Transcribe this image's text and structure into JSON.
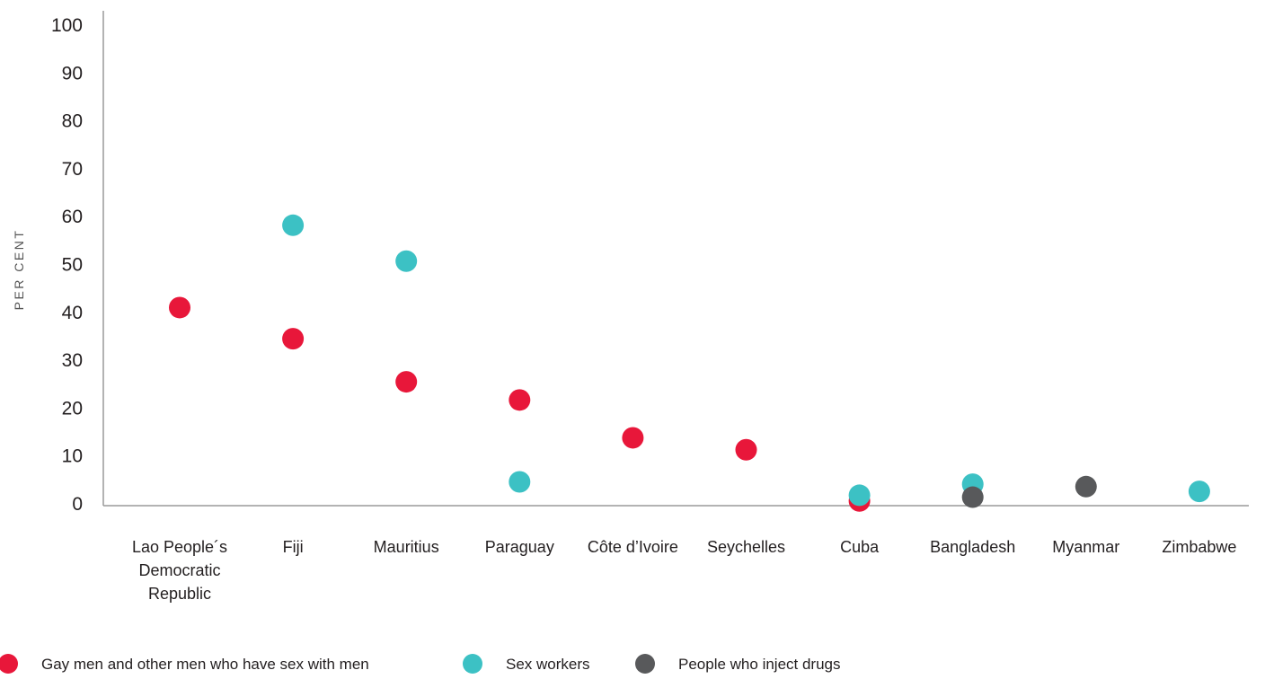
{
  "chart_data": {
    "type": "scatter",
    "title": "",
    "xlabel": "",
    "ylabel": "PER CENT",
    "ylim": [
      0,
      100
    ],
    "yticks": [
      0,
      10,
      20,
      30,
      40,
      50,
      60,
      70,
      80,
      90,
      100
    ],
    "grid": false,
    "legend_position": "bottom-left",
    "categories": [
      [
        "Lao People´s",
        "Democratic",
        "Republic"
      ],
      [
        "Fiji"
      ],
      [
        "Mauritius"
      ],
      [
        "Paraguay"
      ],
      [
        "Côte d’Ivoire"
      ],
      [
        "Seychelles"
      ],
      [
        "Cuba"
      ],
      [
        "Bangladesh"
      ],
      [
        "Myanmar"
      ],
      [
        "Zimbabwe"
      ]
    ],
    "series": [
      {
        "name": "Gay men and other men who have sex with men",
        "color": "#e8173a",
        "values": [
          41,
          34.5,
          25.5,
          21.7,
          13.8,
          11.3,
          0.6,
          null,
          null,
          null
        ]
      },
      {
        "name": "Sex workers",
        "color": "#3cc1c4",
        "values": [
          null,
          58.2,
          50.7,
          4.6,
          null,
          null,
          1.8,
          4.1,
          null,
          2.6
        ]
      },
      {
        "name": "People who inject drugs",
        "color": "#58595b",
        "values": [
          null,
          null,
          null,
          null,
          null,
          null,
          null,
          1.4,
          3.6,
          null
        ]
      }
    ]
  }
}
